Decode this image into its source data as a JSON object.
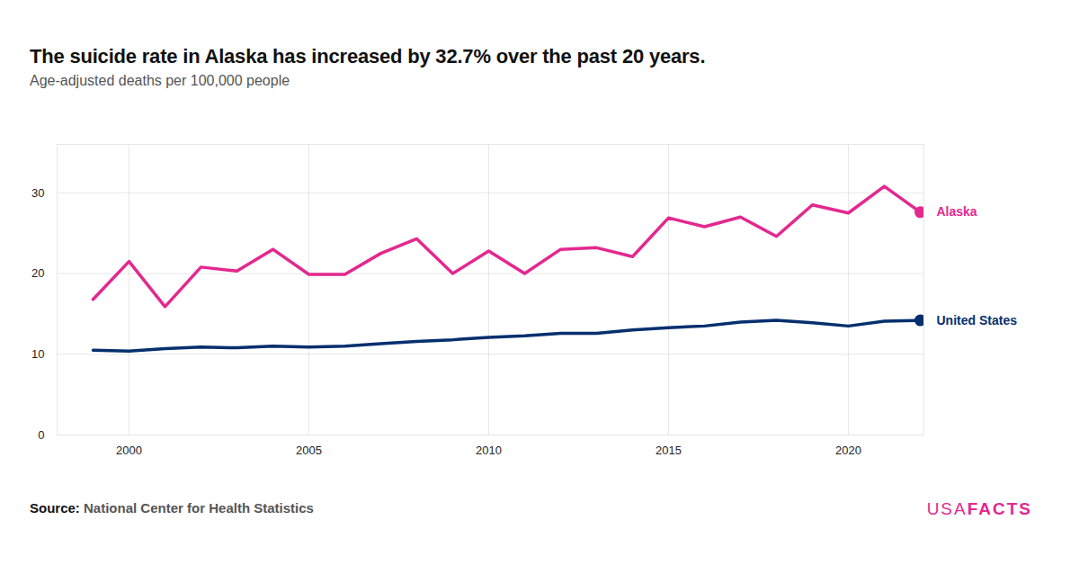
{
  "chart_data": {
    "type": "line",
    "title": "The suicide rate in Alaska has increased by 32.7% over the past 20 years.",
    "subtitle": "Age-adjusted deaths per 100,000 people",
    "source_label": "Source:",
    "source": "National Center for Health Statistics",
    "brand": [
      "USA",
      "FACTS"
    ],
    "x": [
      1999,
      2000,
      2001,
      2002,
      2003,
      2004,
      2005,
      2006,
      2007,
      2008,
      2009,
      2010,
      2011,
      2012,
      2013,
      2014,
      2015,
      2016,
      2017,
      2018,
      2019,
      2020,
      2021,
      2022
    ],
    "series": [
      {
        "name": "Alaska",
        "color": "#e3288f",
        "marker": "end-dot",
        "values": [
          16.8,
          21.5,
          15.9,
          20.8,
          20.3,
          23.0,
          19.9,
          19.9,
          22.5,
          24.3,
          20.0,
          22.8,
          20.0,
          23.0,
          23.2,
          22.1,
          26.9,
          25.8,
          27.0,
          24.6,
          28.5,
          27.5,
          30.8,
          27.6
        ]
      },
      {
        "name": "United States",
        "color": "#062f6e",
        "marker": "end-dot",
        "values": [
          10.5,
          10.4,
          10.7,
          10.9,
          10.8,
          11.0,
          10.9,
          11.0,
          11.3,
          11.6,
          11.8,
          12.1,
          12.3,
          12.6,
          12.6,
          13.0,
          13.3,
          13.5,
          14.0,
          14.2,
          13.9,
          13.5,
          14.1,
          14.2
        ]
      }
    ],
    "xlim": [
      1998,
      2022.1
    ],
    "xticks": [
      2000,
      2005,
      2010,
      2015,
      2020
    ],
    "ylim": [
      0,
      36
    ],
    "yticks": [
      0,
      10,
      20,
      30
    ],
    "grid": true
  }
}
